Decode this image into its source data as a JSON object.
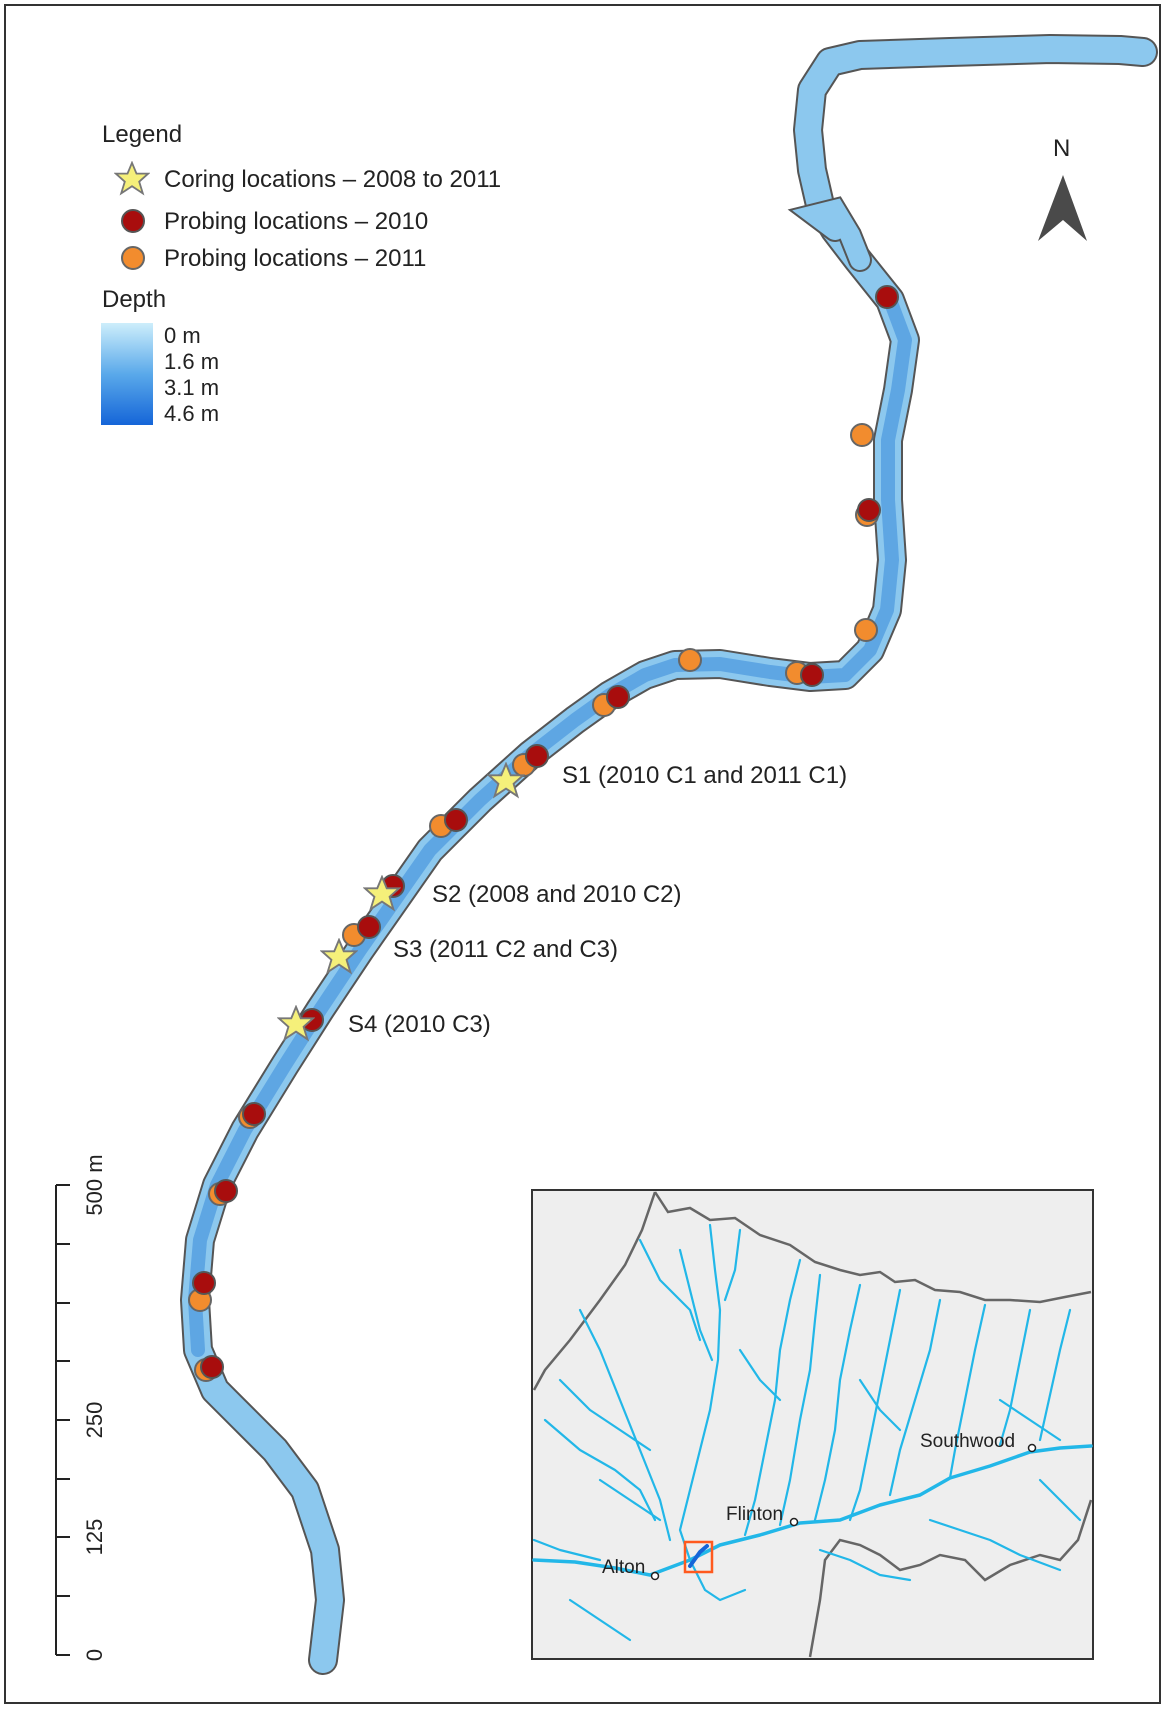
{
  "legend": {
    "title": "Legend",
    "items": [
      {
        "label": "Coring locations – 2008 to 2011",
        "symbol": "star",
        "fill": "#f5f07a",
        "stroke": "#777777"
      },
      {
        "label": "Probing locations – 2010",
        "symbol": "circle",
        "fill": "#a80d0d",
        "stroke": "#555555"
      },
      {
        "label": "Probing locations – 2011",
        "symbol": "circle",
        "fill": "#f28c2e",
        "stroke": "#666666"
      }
    ],
    "depth_title": "Depth",
    "depth_labels": [
      "0 m",
      "1.6 m",
      "3.1 m",
      "4.6 m"
    ],
    "depth_colors": [
      "#cdeefb",
      "#1565d8"
    ]
  },
  "north_arrow": {
    "label": "N"
  },
  "sites": [
    {
      "label": "S1 (2010 C1 and 2011 C1)"
    },
    {
      "label": "S2 (2008 and 2010 C2)"
    },
    {
      "label": "S3 (2011 C2 and C3)"
    },
    {
      "label": "S4 (2010 C3)"
    }
  ],
  "scale_bar": {
    "ticks": [
      "0",
      "125",
      "250",
      "500 m"
    ]
  },
  "inset": {
    "towns": [
      "Southwood",
      "Flinton",
      "Alton"
    ],
    "colors": {
      "land": "#eeeeee",
      "rivers": "#22b7e8",
      "border": "#666666",
      "highlight": "#ff5a1f"
    }
  },
  "colors": {
    "river_fill": "#8cc8ee",
    "river_outline": "#555555"
  }
}
